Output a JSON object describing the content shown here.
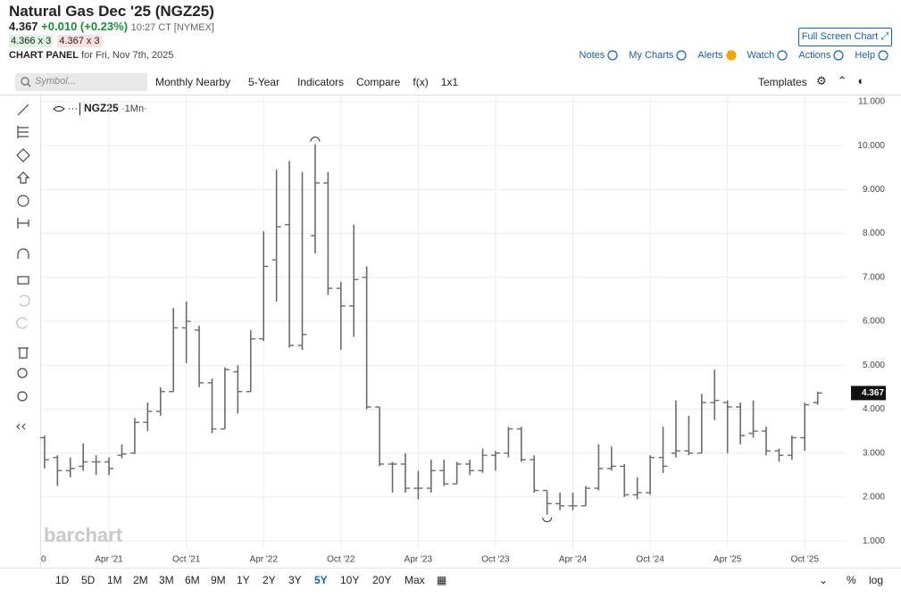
{
  "header": {
    "title": "Natural Gas Dec '25 (NGZ25)",
    "price": "4.367",
    "change": "+0.010 (+0.23%)",
    "time": "10:27 CT [NYMEX]",
    "bid": "4.366 x 3",
    "ask": "4.367 x 3",
    "panel_label": "CHART PANEL",
    "panel_date": "for Fri, Nov 7th, 2025",
    "fullscreen": "Full Screen Chart"
  },
  "menu": [
    "Notes",
    "My Charts",
    "Alerts",
    "Watch",
    "Actions",
    "Help"
  ],
  "toolbar": {
    "symbol_placeholder": "Symbol...",
    "items": [
      "Monthly Nearby",
      "5-Year",
      "Indicators",
      "Compare",
      "f(x)",
      "1x1"
    ],
    "templates": "Templates"
  },
  "chart_data": {
    "type": "ohlc",
    "legend": "NGZ25",
    "legend_period": "·1Mn·",
    "watermark": "barchart",
    "color": "#6b6b6b",
    "categories": [
      null,
      null,
      null,
      null,
      null,
      "Apr '21",
      null,
      null,
      null,
      null,
      null,
      "Oct '21",
      null,
      null,
      null,
      null,
      null,
      "Apr '22",
      null,
      null,
      null,
      null,
      null,
      "Oct '22",
      null,
      null,
      null,
      null,
      null,
      "Apr '23",
      null,
      null,
      null,
      null,
      null,
      "Oct '23",
      null,
      null,
      null,
      null,
      null,
      "Apr '24",
      null,
      null,
      null,
      null,
      null,
      "Oct '24",
      null,
      null,
      null,
      null,
      null,
      "Apr '25",
      null,
      null,
      null,
      null,
      null,
      "Oct '25",
      null
    ],
    "open": [
      3.35,
      2.9,
      2.6,
      2.7,
      2.8,
      2.8,
      2.95,
      3.0,
      3.7,
      3.95,
      4.4,
      5.85,
      5.8,
      4.6,
      3.55,
      4.85,
      4.4,
      5.6,
      7.4,
      8.2,
      5.45,
      7.95,
      9.15,
      6.75,
      6.35,
      7.0,
      4.05,
      2.75,
      2.75,
      2.2,
      2.2,
      2.6,
      2.3,
      2.75,
      2.6,
      2.95,
      3.0,
      3.55,
      2.85,
      2.15,
      1.85,
      1.8,
      1.8,
      2.2,
      2.65,
      2.7,
      2.05,
      2.1,
      2.9,
      3.0,
      3.05,
      3.0,
      4.15,
      4.15,
      4.05,
      3.45,
      3.5,
      3.05,
      2.95,
      3.35,
      4.15
    ],
    "high": [
      3.4,
      2.95,
      2.9,
      3.22,
      2.95,
      2.9,
      3.2,
      3.8,
      4.15,
      4.5,
      6.3,
      6.45,
      5.9,
      4.7,
      4.95,
      5.0,
      5.8,
      8.05,
      9.45,
      9.65,
      9.4,
      10.03,
      9.4,
      6.9,
      8.2,
      7.25,
      4.05,
      2.8,
      3.0,
      2.6,
      2.85,
      2.85,
      2.8,
      2.85,
      3.1,
      3.05,
      3.6,
      3.6,
      2.95,
      2.15,
      2.1,
      2.1,
      2.25,
      3.2,
      3.15,
      2.75,
      2.45,
      2.95,
      3.6,
      4.2,
      3.85,
      4.35,
      4.9,
      4.2,
      4.15,
      4.2,
      3.6,
      3.1,
      3.4,
      4.15,
      4.4
    ],
    "low": [
      2.65,
      2.25,
      2.45,
      2.6,
      2.5,
      2.5,
      2.88,
      2.98,
      3.5,
      3.85,
      4.4,
      5.05,
      4.5,
      3.45,
      3.55,
      3.9,
      4.4,
      5.55,
      6.45,
      5.4,
      5.35,
      7.55,
      6.6,
      5.35,
      5.65,
      4.0,
      2.7,
      2.1,
      2.1,
      1.95,
      2.1,
      2.25,
      2.3,
      2.5,
      2.55,
      2.6,
      2.9,
      2.8,
      2.1,
      1.6,
      1.7,
      1.7,
      1.8,
      2.15,
      2.6,
      2.0,
      1.95,
      2.05,
      2.55,
      2.9,
      2.95,
      3.0,
      3.75,
      3.0,
      3.2,
      3.35,
      2.95,
      2.8,
      2.85,
      3.05,
      4.1
    ],
    "close": [
      2.85,
      2.6,
      2.65,
      2.8,
      2.8,
      2.65,
      2.98,
      3.7,
      3.95,
      4.4,
      5.85,
      6.0,
      4.6,
      3.55,
      4.9,
      4.4,
      5.6,
      7.25,
      8.15,
      5.45,
      5.7,
      9.15,
      6.75,
      6.35,
      6.95,
      4.05,
      2.75,
      2.75,
      2.2,
      2.2,
      2.6,
      2.3,
      2.75,
      2.6,
      2.95,
      3.0,
      3.55,
      2.85,
      2.15,
      1.85,
      1.8,
      1.8,
      2.2,
      2.65,
      2.7,
      2.05,
      2.1,
      2.9,
      2.7,
      3.05,
      3.0,
      4.15,
      4.2,
      4.05,
      3.4,
      3.5,
      3.05,
      2.95,
      3.35,
      4.1,
      4.367
    ],
    "last_price": 4.367,
    "ylim": [
      0.84,
      11.14
    ],
    "yticks": [
      {
        "value": 1,
        "label": "1.000"
      },
      {
        "value": 2,
        "label": "2.000"
      },
      {
        "value": 3,
        "label": "3.000"
      },
      {
        "value": 4,
        "label": "4.000"
      },
      {
        "value": 5,
        "label": "5.000"
      },
      {
        "value": 6,
        "label": "6.000"
      },
      {
        "value": 7,
        "label": "7.000"
      },
      {
        "value": 8,
        "label": "8.000"
      },
      {
        "value": 9,
        "label": "9.000"
      },
      {
        "value": 10,
        "label": "10.000"
      },
      {
        "value": 11,
        "label": "11.000"
      }
    ],
    "grid": true
  },
  "ranges": [
    "1D",
    "5D",
    "1M",
    "2M",
    "3M",
    "6M",
    "9M",
    "1Y",
    "2Y",
    "3Y",
    "5Y",
    "10Y",
    "20Y",
    "Max"
  ],
  "selected_range": "5Y",
  "scale_options": [
    "%",
    "log"
  ]
}
